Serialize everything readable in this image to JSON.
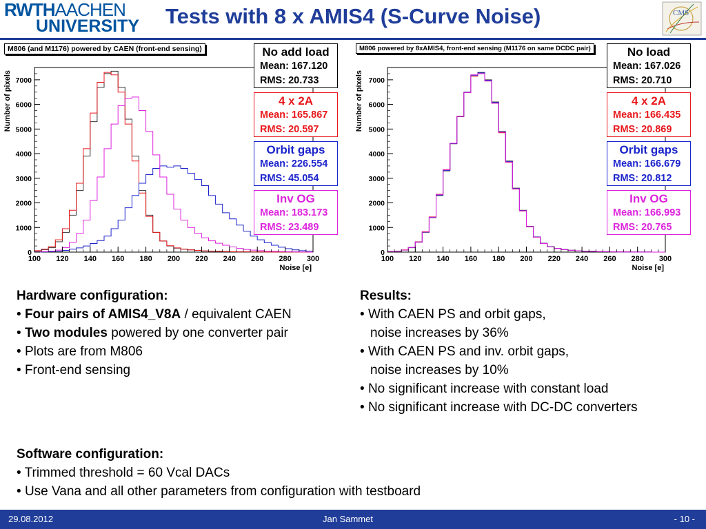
{
  "header": {
    "logo_line1_bold": "RWTH",
    "logo_line1_light": "AACHEN",
    "logo_line2": "UNIVERSITY",
    "title": "Tests with 8 x AMIS4 (S-Curve Noise)",
    "cms_logo_text": "CMS"
  },
  "colors": {
    "accent": "#1f3d99",
    "logo": "#00549f",
    "black": "#333333",
    "red": "#e8171b",
    "blue": "#1c24cc",
    "magenta": "#dd22dd"
  },
  "chart_data": [
    {
      "type": "histogram",
      "title": "M806 (and M1176) powered by CAEN (front-end sensing)",
      "xlabel": "Noise [e]",
      "ylabel": "Number of pixels",
      "xlim": [
        100,
        300
      ],
      "ylim": [
        0,
        7500
      ],
      "xticks": [
        100,
        120,
        140,
        160,
        180,
        200,
        220,
        240,
        260,
        280,
        300
      ],
      "yticks": [
        0,
        1000,
        2000,
        3000,
        4000,
        5000,
        6000,
        7000
      ],
      "bin_edges_start": 100,
      "bin_width": 5,
      "series": [
        {
          "name": "No add load",
          "color": "#333333",
          "values": [
            50,
            100,
            180,
            420,
            800,
            1500,
            2500,
            3900,
            5300,
            6700,
            7250,
            7350,
            6700,
            5400,
            3900,
            2500,
            1500,
            800,
            450,
            250,
            160,
            120,
            90,
            70,
            50,
            40,
            30,
            20,
            15,
            12,
            10,
            8,
            6,
            5,
            4,
            3,
            2,
            2,
            1,
            1
          ]
        },
        {
          "name": "4 x 2A",
          "color": "#e8171b",
          "values": [
            60,
            120,
            220,
            500,
            950,
            1700,
            2800,
            4200,
            5650,
            6900,
            7300,
            7200,
            6500,
            5200,
            3700,
            2400,
            1450,
            800,
            450,
            260,
            170,
            120,
            90,
            70,
            50,
            40,
            30,
            20,
            15,
            12,
            10,
            8,
            6,
            5,
            4,
            3,
            2,
            2,
            1,
            1
          ]
        },
        {
          "name": "Orbit gaps",
          "color": "#1c24cc",
          "values": [
            0,
            10,
            20,
            40,
            70,
            120,
            170,
            250,
            350,
            470,
            650,
            950,
            1300,
            1800,
            2300,
            2800,
            3150,
            3400,
            3500,
            3450,
            3500,
            3400,
            3200,
            2950,
            2700,
            2300,
            1950,
            1600,
            1350,
            1100,
            850,
            650,
            500,
            380,
            280,
            200,
            140,
            90,
            60,
            40
          ]
        },
        {
          "name": "Inv OG",
          "color": "#dd22dd",
          "values": [
            10,
            20,
            40,
            80,
            180,
            400,
            750,
            1300,
            2100,
            3050,
            4200,
            5200,
            5950,
            6250,
            6300,
            5750,
            4900,
            3950,
            3050,
            2350,
            1750,
            1300,
            1000,
            760,
            580,
            460,
            360,
            280,
            210,
            150,
            110,
            80,
            60,
            40,
            30,
            20,
            15,
            10,
            8,
            5
          ]
        }
      ],
      "legend": [
        {
          "name": "No add load",
          "mean_label": "Mean: 167.120",
          "rms_label": "RMS: 20.733",
          "color": "#333333"
        },
        {
          "name": "4 x 2A",
          "mean_label": "Mean: 165.867",
          "rms_label": "RMS: 20.597",
          "color": "#e8171b"
        },
        {
          "name": "Orbit gaps",
          "mean_label": "Mean: 226.554",
          "rms_label": "RMS: 45.054",
          "color": "#1c24cc"
        },
        {
          "name": "Inv OG",
          "mean_label": "Mean: 183.173",
          "rms_label": "RMS: 23.489",
          "color": "#dd22dd"
        }
      ]
    },
    {
      "type": "histogram",
      "title": "M806 powered by 8xAMIS4, front-end sensing (M1176 on same DCDC pair)",
      "xlabel": "Noise [e]",
      "ylabel": "Number of pixels",
      "xlim": [
        100,
        300
      ],
      "ylim": [
        0,
        7500
      ],
      "xticks": [
        100,
        120,
        140,
        160,
        180,
        200,
        220,
        240,
        260,
        280,
        300
      ],
      "yticks": [
        0,
        1000,
        2000,
        3000,
        4000,
        5000,
        6000,
        7000
      ],
      "bin_edges_start": 100,
      "bin_width": 5,
      "series": [
        {
          "name": "No load",
          "color": "#333333",
          "values": [
            20,
            40,
            80,
            180,
            400,
            800,
            1400,
            2300,
            3300,
            4400,
            5500,
            6500,
            7200,
            7300,
            7000,
            6100,
            4900,
            3700,
            2600,
            1700,
            1050,
            620,
            360,
            220,
            150,
            100,
            75,
            55,
            40,
            30,
            22,
            16,
            12,
            8,
            6,
            4,
            3,
            2,
            1,
            1
          ]
        },
        {
          "name": "4 x 2A",
          "color": "#e8171b",
          "values": [
            20,
            40,
            90,
            190,
            420,
            830,
            1430,
            2350,
            3350,
            4420,
            5520,
            6480,
            7150,
            7250,
            6950,
            6050,
            4850,
            3650,
            2560,
            1670,
            1030,
            610,
            350,
            215,
            150,
            100,
            75,
            55,
            40,
            30,
            22,
            16,
            12,
            8,
            6,
            4,
            3,
            2,
            1,
            1
          ]
        },
        {
          "name": "Orbit gaps",
          "color": "#1c24cc",
          "values": [
            20,
            40,
            85,
            185,
            410,
            810,
            1410,
            2320,
            3320,
            4410,
            5510,
            6490,
            7180,
            7280,
            6980,
            6080,
            4880,
            3680,
            2580,
            1690,
            1040,
            615,
            355,
            218,
            150,
            100,
            75,
            55,
            40,
            30,
            22,
            16,
            12,
            8,
            6,
            4,
            3,
            2,
            1,
            1
          ]
        },
        {
          "name": "Inv OG",
          "color": "#dd22dd",
          "values": [
            20,
            40,
            85,
            190,
            410,
            820,
            1420,
            2340,
            3340,
            4420,
            5510,
            6480,
            7200,
            7250,
            6950,
            6050,
            4870,
            3660,
            2570,
            1680,
            1040,
            610,
            350,
            215,
            150,
            100,
            75,
            55,
            40,
            30,
            22,
            16,
            12,
            8,
            6,
            4,
            3,
            2,
            1,
            1
          ]
        }
      ],
      "legend": [
        {
          "name": "No load",
          "mean_label": "Mean: 167.026",
          "rms_label": "RMS: 20.710",
          "color": "#333333"
        },
        {
          "name": "4 x 2A",
          "mean_label": "Mean: 166.435",
          "rms_label": "RMS: 20.869",
          "color": "#e8171b"
        },
        {
          "name": "Orbit gaps",
          "mean_label": "Mean: 166.679",
          "rms_label": "RMS: 20.812",
          "color": "#1c24cc"
        },
        {
          "name": "Inv OG",
          "mean_label": "Mean: 166.993",
          "rms_label": "RMS: 20.765",
          "color": "#dd22dd"
        }
      ]
    }
  ],
  "hardware": {
    "heading": "Hardware configuration:",
    "line1_bold": "Four pairs of AMIS4_V8A",
    "line1_rest": " / equivalent CAEN",
    "line2_bold": "Two modules",
    "line2_rest": " powered by one converter pair",
    "line3": "Plots are from M806",
    "line4": "Front-end sensing"
  },
  "results": {
    "heading": "Results:",
    "line1": "With CAEN PS and orbit gaps,",
    "line1b": "noise increases by 36%",
    "line2": "With CAEN PS and inv. orbit gaps,",
    "line2b": "noise increases by 10%",
    "line3": "No significant increase with constant load",
    "line4": "No significant increase with DC-DC converters"
  },
  "software": {
    "heading": "Software configuration:",
    "line1": "Trimmed threshold = 60 Vcal DACs",
    "line2": "Use Vana and all other parameters from configuration with testboard"
  },
  "footer": {
    "date": "29.08.2012",
    "author": "Jan Sammet",
    "page": "- 10 -"
  }
}
